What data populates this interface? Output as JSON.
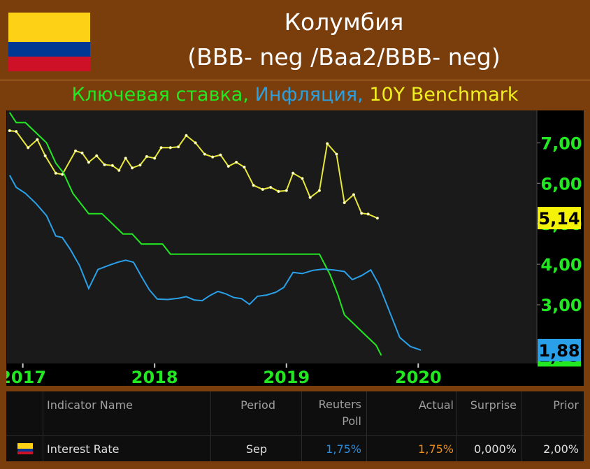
{
  "header": {
    "title_line1": "Колумбия",
    "title_line2": "(BBB- neg /Baa2/BBB- neg)",
    "subtitle_parts": [
      {
        "text": "Ключевая ставка, ",
        "color": "#22e822"
      },
      {
        "text": "Инфляция, ",
        "color": "#2aa0e0"
      },
      {
        "text": "10Y Benchmark",
        "color": "#f0f020"
      }
    ]
  },
  "flag_colors": [
    "#fcd116",
    "#003893",
    "#ce1126"
  ],
  "chart_data": {
    "type": "line",
    "x_ticks": [
      "2017",
      "2018",
      "2019",
      "2020"
    ],
    "y_ticks": [
      "7,00",
      "6,00",
      "5,00",
      "4,00",
      "3,00"
    ],
    "ylim": [
      1.55,
      7.8
    ],
    "xlim": [
      2016.88,
      2020.9
    ],
    "grid": false,
    "series": [
      {
        "name": "10Y Benchmark",
        "color": "#e8e83a",
        "last_label": "5,14",
        "last_label_bg": "#f5f20a",
        "markers": true,
        "points": [
          [
            2016.9,
            7.3
          ],
          [
            2016.95,
            7.28
          ],
          [
            2017.04,
            6.88
          ],
          [
            2017.11,
            7.08
          ],
          [
            2017.17,
            6.68
          ],
          [
            2017.25,
            6.25
          ],
          [
            2017.3,
            6.22
          ],
          [
            2017.4,
            6.8
          ],
          [
            2017.45,
            6.75
          ],
          [
            2017.5,
            6.52
          ],
          [
            2017.56,
            6.68
          ],
          [
            2017.62,
            6.46
          ],
          [
            2017.68,
            6.44
          ],
          [
            2017.73,
            6.32
          ],
          [
            2017.78,
            6.62
          ],
          [
            2017.83,
            6.38
          ],
          [
            2017.89,
            6.45
          ],
          [
            2017.94,
            6.66
          ],
          [
            2018.0,
            6.62
          ],
          [
            2018.05,
            6.88
          ],
          [
            2018.12,
            6.88
          ],
          [
            2018.18,
            6.9
          ],
          [
            2018.24,
            7.18
          ],
          [
            2018.31,
            7.0
          ],
          [
            2018.38,
            6.72
          ],
          [
            2018.44,
            6.65
          ],
          [
            2018.5,
            6.7
          ],
          [
            2018.56,
            6.42
          ],
          [
            2018.62,
            6.52
          ],
          [
            2018.68,
            6.4
          ],
          [
            2018.75,
            5.95
          ],
          [
            2018.82,
            5.85
          ],
          [
            2018.88,
            5.9
          ],
          [
            2018.94,
            5.8
          ],
          [
            2019.0,
            5.82
          ],
          [
            2019.05,
            6.25
          ],
          [
            2019.12,
            6.12
          ],
          [
            2019.18,
            5.65
          ],
          [
            2019.25,
            5.82
          ],
          [
            2019.31,
            6.98
          ],
          [
            2019.38,
            6.72
          ],
          [
            2019.44,
            5.52
          ],
          [
            2019.51,
            5.72
          ],
          [
            2019.57,
            5.26
          ],
          [
            2019.62,
            5.24
          ],
          [
            2019.69,
            5.14
          ]
        ]
      },
      {
        "name": "Ключевая ставка",
        "color": "#22e822",
        "last_label": "1,75",
        "last_label_bg": "#22e822",
        "markers": false,
        "points": [
          [
            2016.9,
            7.75
          ],
          [
            2016.95,
            7.5
          ],
          [
            2017.02,
            7.5
          ],
          [
            2017.1,
            7.25
          ],
          [
            2017.18,
            7.0
          ],
          [
            2017.25,
            6.5
          ],
          [
            2017.31,
            6.25
          ],
          [
            2017.38,
            5.75
          ],
          [
            2017.44,
            5.5
          ],
          [
            2017.5,
            5.25
          ],
          [
            2017.6,
            5.25
          ],
          [
            2017.68,
            5.0
          ],
          [
            2017.76,
            4.75
          ],
          [
            2017.83,
            4.75
          ],
          [
            2017.9,
            4.5
          ],
          [
            2018.06,
            4.5
          ],
          [
            2018.12,
            4.25
          ],
          [
            2019.25,
            4.25
          ],
          [
            2019.33,
            3.75
          ],
          [
            2019.39,
            3.25
          ],
          [
            2019.44,
            2.75
          ],
          [
            2019.52,
            2.5
          ],
          [
            2019.6,
            2.25
          ],
          [
            2019.68,
            2.0
          ],
          [
            2019.72,
            1.75
          ]
        ]
      },
      {
        "name": "Инфляция",
        "color": "#2aa0e8",
        "last_label": "1,88",
        "last_label_bg": "#2aa0e8",
        "markers": false,
        "points": [
          [
            2016.9,
            6.2
          ],
          [
            2016.95,
            5.9
          ],
          [
            2017.02,
            5.75
          ],
          [
            2017.1,
            5.5
          ],
          [
            2017.18,
            5.2
          ],
          [
            2017.25,
            4.7
          ],
          [
            2017.3,
            4.66
          ],
          [
            2017.36,
            4.37
          ],
          [
            2017.43,
            3.97
          ],
          [
            2017.5,
            3.4
          ],
          [
            2017.57,
            3.87
          ],
          [
            2017.65,
            3.97
          ],
          [
            2017.72,
            4.05
          ],
          [
            2017.78,
            4.1
          ],
          [
            2017.84,
            4.05
          ],
          [
            2017.9,
            3.7
          ],
          [
            2017.96,
            3.37
          ],
          [
            2018.02,
            3.14
          ],
          [
            2018.1,
            3.13
          ],
          [
            2018.18,
            3.16
          ],
          [
            2018.24,
            3.2
          ],
          [
            2018.3,
            3.12
          ],
          [
            2018.36,
            3.1
          ],
          [
            2018.42,
            3.23
          ],
          [
            2018.48,
            3.33
          ],
          [
            2018.54,
            3.27
          ],
          [
            2018.6,
            3.18
          ],
          [
            2018.66,
            3.15
          ],
          [
            2018.72,
            3.01
          ],
          [
            2018.78,
            3.21
          ],
          [
            2018.85,
            3.24
          ],
          [
            2018.92,
            3.31
          ],
          [
            2018.98,
            3.43
          ],
          [
            2019.05,
            3.8
          ],
          [
            2019.12,
            3.77
          ],
          [
            2019.2,
            3.85
          ],
          [
            2019.28,
            3.88
          ],
          [
            2019.36,
            3.86
          ],
          [
            2019.44,
            3.82
          ],
          [
            2019.5,
            3.62
          ],
          [
            2019.57,
            3.72
          ],
          [
            2019.64,
            3.86
          ],
          [
            2019.7,
            3.51
          ],
          [
            2019.78,
            2.85
          ],
          [
            2019.86,
            2.19
          ],
          [
            2019.94,
            1.97
          ],
          [
            2020.02,
            1.88
          ]
        ]
      }
    ]
  },
  "table": {
    "headers": [
      "Indicator Name",
      "Period",
      "Reuters\nPoll",
      "Actual",
      "Surprise",
      "Prior"
    ],
    "row": {
      "name": "Interest Rate",
      "period": "Sep",
      "poll": "1,75%",
      "actual": "1,75%",
      "surprise": "0,000%",
      "prior": "2,00%"
    },
    "colors": {
      "header_text": "#a0a0a0",
      "poll": "#2a8ee0",
      "actual": "#f0901a",
      "text": "#e0e0e0"
    }
  }
}
